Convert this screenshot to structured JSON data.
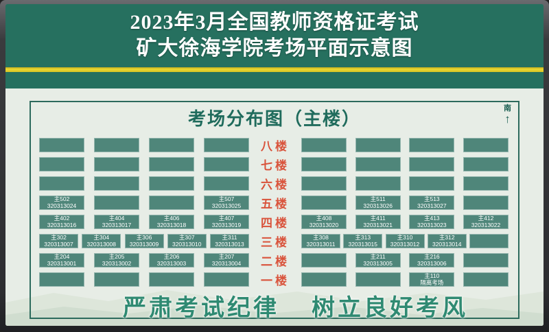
{
  "header": {
    "title_line1": "2023年3月全国教师资格证考试",
    "title_line2": "矿大徐海学院考场平面示意图"
  },
  "panel": {
    "title": "考场分布图（主楼）",
    "compass_label": "南",
    "compass_arrow": "↑"
  },
  "floors": [
    {
      "label": "八楼",
      "left": [
        null,
        null,
        null,
        null
      ],
      "right": [
        null,
        null,
        null,
        null
      ]
    },
    {
      "label": "七楼",
      "left": [
        null,
        null,
        null,
        null
      ],
      "right": [
        null,
        null,
        null,
        null
      ]
    },
    {
      "label": "六楼",
      "left": [
        null,
        null,
        null,
        null
      ],
      "right": [
        null,
        null,
        null,
        null
      ]
    },
    {
      "label": "五楼",
      "left": [
        {
          "room": "主502",
          "code": "320313024"
        },
        null,
        null,
        {
          "room": "主507",
          "code": "320313025"
        }
      ],
      "right": [
        null,
        {
          "room": "主511",
          "code": "320313026"
        },
        {
          "room": "主513",
          "code": "320313027"
        },
        null
      ]
    },
    {
      "label": "四楼",
      "left": [
        {
          "room": "主402",
          "code": "320313016"
        },
        {
          "room": "主404",
          "code": "320313017"
        },
        {
          "room": "主406",
          "code": "320313018"
        },
        {
          "room": "主407",
          "code": "320313019"
        }
      ],
      "right": [
        {
          "room": "主408",
          "code": "320313020"
        },
        {
          "room": "主411",
          "code": "320313021"
        },
        {
          "room": "主413",
          "code": "320313023"
        },
        {
          "room": "主412",
          "code": "320313022"
        }
      ]
    },
    {
      "label": "三楼",
      "left": [
        {
          "room": "主302",
          "code": "320313007"
        },
        {
          "room": "主304",
          "code": "320313008"
        },
        {
          "room": "主306",
          "code": "320313009"
        },
        {
          "room": "主307",
          "code": "320313010"
        },
        {
          "room": "主311",
          "code": "320313013"
        }
      ],
      "right": [
        {
          "room": "主308",
          "code": "320313011"
        },
        {
          "room": "主313",
          "code": "320313015"
        },
        {
          "room": "主310",
          "code": "320313012"
        },
        {
          "room": "主312",
          "code": "320313014"
        },
        null
      ]
    },
    {
      "label": "二楼",
      "left": [
        {
          "room": "主204",
          "code": "320313001"
        },
        {
          "room": "主205",
          "code": "320313002"
        },
        {
          "room": "主206",
          "code": "320313003"
        },
        {
          "room": "主207",
          "code": "320313004"
        }
      ],
      "right": [
        null,
        {
          "room": "主211",
          "code": "320313005"
        },
        {
          "room": "主216",
          "code": "320313006"
        },
        null
      ]
    },
    {
      "label": "一楼",
      "left": [
        null,
        null,
        null,
        null
      ],
      "right": [
        null,
        null,
        {
          "room": "主110",
          "code": "隔离考场"
        },
        null
      ]
    }
  ],
  "slogans": {
    "left": "严肃考试纪律",
    "right": "树立良好考风"
  },
  "colors": {
    "header_teal": "#26705f",
    "divider_yellow": "#ecd92f",
    "panel_background": "#e7ede6",
    "panel_border": "#2c6a5c",
    "room_block": "#4f867a",
    "floor_label_red": "#d9533b",
    "slogan_green": "#2f8a72",
    "title_text": "#ffffff"
  }
}
